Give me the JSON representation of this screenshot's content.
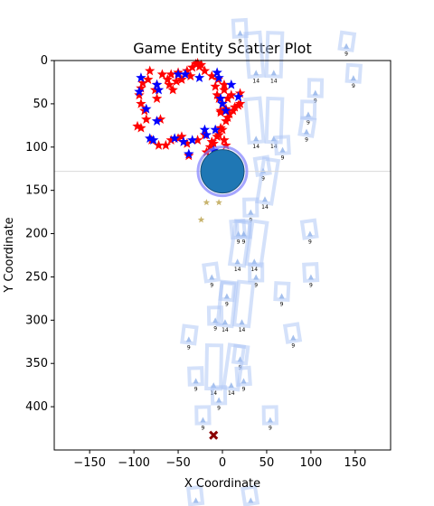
{
  "chart_data": {
    "type": "scatter",
    "title": "Game Entity Scatter Plot",
    "xlabel": "X Coordinate",
    "ylabel": "Y Coordinate",
    "xlim": [
      -190,
      190
    ],
    "ylim": [
      450,
      0
    ],
    "y_inverted": true,
    "xticks": [
      -150,
      -100,
      -50,
      0,
      50,
      100,
      150
    ],
    "yticks": [
      0,
      50,
      100,
      150,
      200,
      250,
      300,
      350,
      400
    ],
    "grid": false,
    "legend": "none",
    "colors": {
      "red_star": "#ff0000",
      "blue_star": "#0000ff",
      "player": "#1f77b4",
      "player_ring": "#7f7fff",
      "gold_star": "#c8b46e",
      "cross": "#8b0000",
      "ghost": "#a9c4f5",
      "horizon_line": "#d9d9d9"
    },
    "red_stars": [
      [
        -82,
        12
      ],
      [
        -68,
        16
      ],
      [
        -58,
        16
      ],
      [
        -50,
        14
      ],
      [
        -40,
        12
      ],
      [
        -34,
        8
      ],
      [
        -30,
        4
      ],
      [
        -28,
        3
      ],
      [
        -26,
        7
      ],
      [
        -24,
        5
      ],
      [
        -20,
        12
      ],
      [
        -12,
        18
      ],
      [
        -5,
        22
      ],
      [
        2,
        28
      ],
      [
        -84,
        22
      ],
      [
        -90,
        26
      ],
      [
        -92,
        32
      ],
      [
        -94,
        40
      ],
      [
        -92,
        50
      ],
      [
        -88,
        58
      ],
      [
        -86,
        68
      ],
      [
        -92,
        78
      ],
      [
        -96,
        76
      ],
      [
        -80,
        92
      ],
      [
        -72,
        98
      ],
      [
        -64,
        98
      ],
      [
        -58,
        92
      ],
      [
        -50,
        90
      ],
      [
        -46,
        88
      ],
      [
        -40,
        96
      ],
      [
        -28,
        92
      ],
      [
        -14,
        100
      ],
      [
        -18,
        106
      ],
      [
        -10,
        96
      ],
      [
        -4,
        86
      ],
      [
        0,
        80
      ],
      [
        4,
        70
      ],
      [
        8,
        62
      ],
      [
        4,
        56
      ],
      [
        0,
        50
      ],
      [
        -4,
        44
      ],
      [
        10,
        40
      ],
      [
        20,
        38
      ],
      [
        18,
        52
      ],
      [
        12,
        58
      ],
      [
        6,
        66
      ],
      [
        -2,
        78
      ],
      [
        -6,
        88
      ],
      [
        2,
        92
      ],
      [
        4,
        98
      ],
      [
        -70,
        68
      ],
      [
        -74,
        44
      ],
      [
        -60,
        28
      ],
      [
        -56,
        34
      ],
      [
        -76,
        34
      ],
      [
        -74,
        28
      ],
      [
        -52,
        24
      ],
      [
        -46,
        22
      ],
      [
        -36,
        18
      ],
      [
        -8,
        30
      ],
      [
        -6,
        40
      ],
      [
        2,
        34
      ],
      [
        -2,
        60
      ],
      [
        6,
        44
      ],
      [
        -62,
        22
      ],
      [
        -38,
        110
      ],
      [
        -20,
        86
      ],
      [
        -12,
        94
      ],
      [
        14,
        54
      ],
      [
        20,
        50
      ],
      [
        -2,
        58
      ]
    ],
    "blue_stars": [
      [
        -94,
        36
      ],
      [
        -92,
        20
      ],
      [
        -74,
        28
      ],
      [
        -72,
        34
      ],
      [
        -50,
        16
      ],
      [
        -42,
        16
      ],
      [
        -26,
        20
      ],
      [
        -6,
        14
      ],
      [
        -4,
        20
      ],
      [
        -2,
        44
      ],
      [
        10,
        28
      ],
      [
        18,
        42
      ],
      [
        -82,
        90
      ],
      [
        -78,
        92
      ],
      [
        -54,
        90
      ],
      [
        -44,
        94
      ],
      [
        -34,
        92
      ],
      [
        -18,
        86
      ],
      [
        -10,
        104
      ],
      [
        -20,
        80
      ],
      [
        -8,
        80
      ],
      [
        -38,
        108
      ],
      [
        -86,
        56
      ],
      [
        -74,
        70
      ],
      [
        0,
        50
      ],
      [
        4,
        58
      ]
    ],
    "gold_stars": [
      [
        -18,
        164
      ],
      [
        -4,
        164
      ],
      [
        -24,
        184
      ]
    ],
    "player": {
      "x": 0,
      "y": 128
    },
    "horizon_y": 128,
    "cross": {
      "x": -10,
      "y": 433
    },
    "ghost_markers": [
      {
        "x": 38,
        "y": 14,
        "label": "14"
      },
      {
        "x": 58,
        "y": 14,
        "label": "14"
      },
      {
        "x": 105,
        "y": 37,
        "label": "9"
      },
      {
        "x": 97,
        "y": 62,
        "label": "9"
      },
      {
        "x": 95,
        "y": 82,
        "label": "9"
      },
      {
        "x": 38,
        "y": 90,
        "label": "14"
      },
      {
        "x": 58,
        "y": 90,
        "label": "14"
      },
      {
        "x": 68,
        "y": 103,
        "label": "9"
      },
      {
        "x": 46,
        "y": 127,
        "label": "9"
      },
      {
        "x": 48,
        "y": 160,
        "label": "14"
      },
      {
        "x": 32,
        "y": 175,
        "label": "9"
      },
      {
        "x": 99,
        "y": 200,
        "label": "9"
      },
      {
        "x": 18,
        "y": 200,
        "label": "9"
      },
      {
        "x": 24,
        "y": 200,
        "label": "9"
      },
      {
        "x": 17,
        "y": 232,
        "label": "14"
      },
      {
        "x": 36,
        "y": 232,
        "label": "14"
      },
      {
        "x": -12,
        "y": 250,
        "label": "9"
      },
      {
        "x": 38,
        "y": 250,
        "label": "9"
      },
      {
        "x": 100,
        "y": 250,
        "label": "9"
      },
      {
        "x": 5,
        "y": 272,
        "label": "9"
      },
      {
        "x": 67,
        "y": 272,
        "label": "9"
      },
      {
        "x": -8,
        "y": 300,
        "label": "9"
      },
      {
        "x": 3,
        "y": 302,
        "label": "14"
      },
      {
        "x": 22,
        "y": 302,
        "label": "14"
      },
      {
        "x": -38,
        "y": 322,
        "label": "9"
      },
      {
        "x": 80,
        "y": 320,
        "label": "9"
      },
      {
        "x": 20,
        "y": 345,
        "label": "9"
      },
      {
        "x": -30,
        "y": 370,
        "label": "9"
      },
      {
        "x": 24,
        "y": 370,
        "label": "9"
      },
      {
        "x": -10,
        "y": 375,
        "label": "14"
      },
      {
        "x": 10,
        "y": 375,
        "label": "14"
      },
      {
        "x": -4,
        "y": 392,
        "label": "9"
      },
      {
        "x": -22,
        "y": 415,
        "label": "9"
      },
      {
        "x": 54,
        "y": 415,
        "label": "9"
      },
      {
        "x": -30,
        "y": 508,
        "label": "9"
      },
      {
        "x": 32,
        "y": 508,
        "label": "9"
      },
      {
        "x": 20,
        "y": -32,
        "label": "9"
      },
      {
        "x": 140,
        "y": -17,
        "label": "9"
      },
      {
        "x": 148,
        "y": 20,
        "label": "9"
      }
    ]
  }
}
